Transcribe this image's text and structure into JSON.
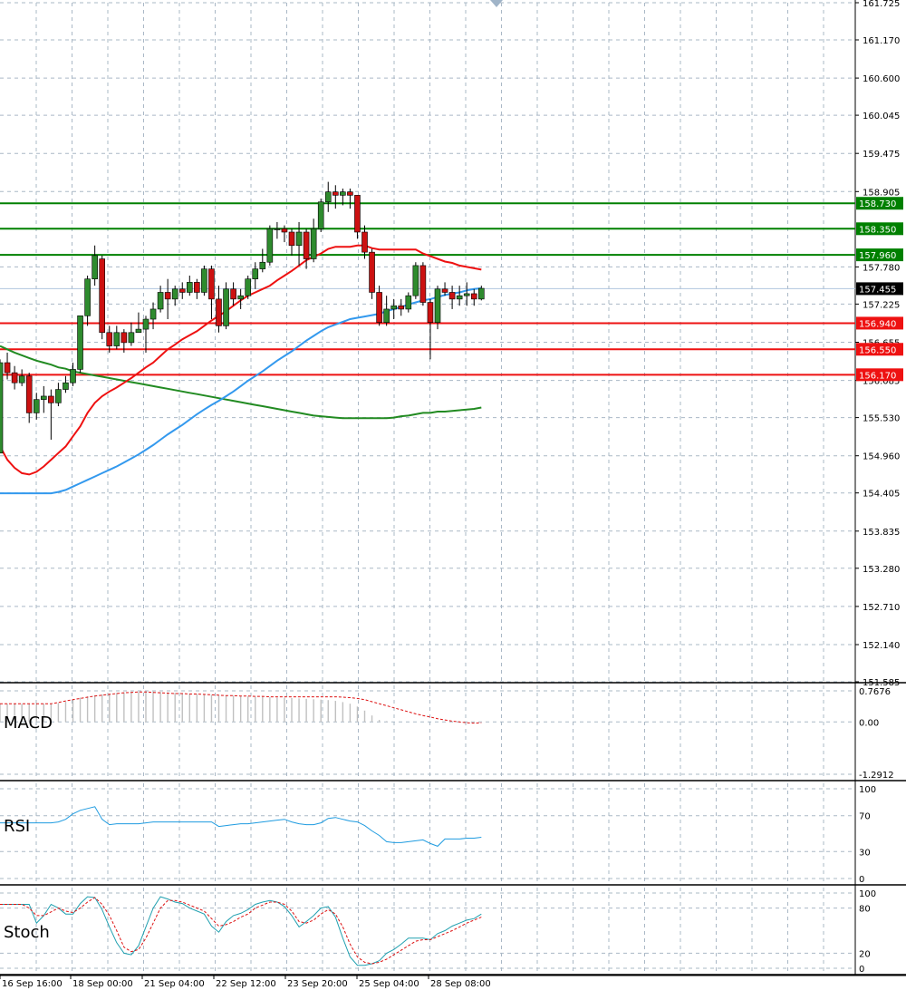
{
  "chart_data": {
    "type": "candlestick",
    "main": {
      "y_ticks": [
        161.725,
        161.17,
        160.6,
        160.045,
        159.475,
        158.905,
        157.78,
        157.225,
        156.655,
        156.085,
        155.53,
        154.96,
        154.405,
        153.835,
        153.28,
        152.71,
        152.14,
        151.585
      ],
      "ylim": [
        151.585,
        161.725
      ],
      "current_price": "157.455",
      "resistance_levels": [
        {
          "label": "158.730",
          "value": 158.73
        },
        {
          "label": "158.350",
          "value": 158.35
        },
        {
          "label": "157.960",
          "value": 157.96
        }
      ],
      "support_levels": [
        {
          "label": "156.940",
          "value": 156.94
        },
        {
          "label": "156.550",
          "value": 156.55
        },
        {
          "label": "156.170",
          "value": 156.17
        }
      ],
      "candles": [
        [
          155.0,
          156.35,
          155.0,
          156.4
        ],
        [
          156.35,
          156.2,
          156.5,
          156.1
        ],
        [
          156.2,
          156.05,
          156.3,
          155.95
        ],
        [
          156.05,
          156.15,
          156.25,
          156.0
        ],
        [
          156.15,
          155.6,
          156.2,
          155.45
        ],
        [
          155.6,
          155.8,
          155.9,
          155.5
        ],
        [
          155.8,
          155.85,
          156.0,
          155.6
        ],
        [
          155.85,
          155.75,
          155.95,
          155.2
        ],
        [
          155.75,
          155.95,
          156.05,
          155.7
        ],
        [
          155.95,
          156.05,
          156.15,
          155.9
        ],
        [
          156.05,
          156.25,
          156.35,
          156.0
        ],
        [
          156.25,
          157.05,
          157.05,
          156.2
        ],
        [
          157.05,
          157.6,
          157.65,
          156.9
        ],
        [
          157.6,
          157.95,
          158.1,
          157.5
        ],
        [
          157.9,
          156.8,
          157.95,
          156.7
        ],
        [
          156.8,
          156.6,
          156.9,
          156.5
        ],
        [
          156.6,
          156.8,
          156.9,
          156.55
        ],
        [
          156.8,
          156.65,
          156.85,
          156.5
        ],
        [
          156.65,
          156.8,
          156.95,
          156.6
        ],
        [
          156.8,
          156.85,
          157.1,
          156.8
        ],
        [
          156.85,
          157.0,
          157.05,
          156.5
        ],
        [
          157.0,
          157.15,
          157.25,
          156.85
        ],
        [
          157.15,
          157.4,
          157.5,
          157.1
        ],
        [
          157.4,
          157.3,
          157.6,
          157.0
        ],
        [
          157.3,
          157.45,
          157.5,
          157.2
        ],
        [
          157.45,
          157.4,
          157.55,
          157.3
        ],
        [
          157.4,
          157.55,
          157.65,
          157.35
        ],
        [
          157.55,
          157.4,
          157.6,
          157.3
        ],
        [
          157.4,
          157.75,
          157.8,
          157.35
        ],
        [
          157.75,
          157.3,
          157.8,
          157.0
        ],
        [
          157.3,
          156.9,
          157.5,
          156.8
        ],
        [
          156.9,
          157.45,
          157.55,
          156.85
        ],
        [
          157.45,
          157.3,
          157.55,
          157.2
        ],
        [
          157.3,
          157.35,
          157.45,
          157.15
        ],
        [
          157.35,
          157.6,
          157.65,
          157.3
        ],
        [
          157.6,
          157.75,
          157.85,
          157.45
        ],
        [
          157.75,
          157.85,
          158.05,
          157.7
        ],
        [
          157.85,
          158.35,
          158.4,
          157.8
        ],
        [
          158.35,
          158.35,
          158.45,
          158.2
        ],
        [
          158.35,
          158.3,
          158.4,
          158.15
        ],
        [
          158.3,
          158.1,
          158.35,
          157.95
        ],
        [
          158.1,
          158.3,
          158.45,
          157.8
        ],
        [
          158.3,
          157.9,
          158.35,
          157.75
        ],
        [
          157.9,
          158.35,
          158.5,
          157.85
        ],
        [
          158.35,
          158.75,
          158.8,
          158.3
        ],
        [
          158.75,
          158.9,
          159.05,
          158.6
        ],
        [
          158.9,
          158.85,
          159.0,
          158.65
        ],
        [
          158.85,
          158.9,
          158.95,
          158.7
        ],
        [
          158.9,
          158.85,
          158.95,
          158.65
        ],
        [
          158.85,
          158.3,
          158.85,
          158.2
        ],
        [
          158.3,
          158.0,
          158.4,
          157.9
        ],
        [
          158.0,
          157.4,
          158.05,
          157.3
        ],
        [
          157.4,
          156.95,
          157.5,
          156.9
        ],
        [
          156.95,
          157.15,
          157.35,
          156.9
        ],
        [
          157.15,
          157.2,
          157.3,
          157.0
        ],
        [
          157.2,
          157.15,
          157.3,
          157.05
        ],
        [
          157.15,
          157.35,
          157.4,
          157.1
        ],
        [
          157.35,
          157.8,
          157.85,
          157.3
        ],
        [
          157.8,
          157.25,
          157.85,
          157.2
        ],
        [
          157.25,
          156.95,
          157.3,
          156.4
        ],
        [
          156.95,
          157.45,
          157.5,
          156.85
        ],
        [
          157.45,
          157.4,
          157.55,
          157.35
        ],
        [
          157.4,
          157.3,
          157.5,
          157.15
        ],
        [
          157.3,
          157.35,
          157.5,
          157.2
        ],
        [
          157.35,
          157.38,
          157.55,
          157.2
        ],
        [
          157.38,
          157.3,
          157.45,
          157.2
        ],
        [
          157.3,
          157.46,
          157.5,
          157.28
        ]
      ],
      "ma_red": [
        155.1,
        154.9,
        154.78,
        154.7,
        154.68,
        154.72,
        154.8,
        154.9,
        155.0,
        155.1,
        155.25,
        155.4,
        155.6,
        155.75,
        155.85,
        155.92,
        155.98,
        156.05,
        156.12,
        156.2,
        156.28,
        156.35,
        156.45,
        156.55,
        156.62,
        156.7,
        156.76,
        156.82,
        156.9,
        156.98,
        157.05,
        157.12,
        157.2,
        157.28,
        157.35,
        157.4,
        157.45,
        157.5,
        157.58,
        157.65,
        157.72,
        157.8,
        157.88,
        157.93,
        157.98,
        158.05,
        158.08,
        158.08,
        158.08,
        158.1,
        158.1,
        158.06,
        158.04,
        158.04,
        158.04,
        158.04,
        158.04,
        158.04,
        157.98,
        157.94,
        157.9,
        157.86,
        157.84,
        157.8,
        157.78,
        157.76,
        157.74
      ],
      "ma_blue": [
        154.4,
        154.4,
        154.4,
        154.4,
        154.4,
        154.4,
        154.4,
        154.4,
        154.42,
        154.45,
        154.5,
        154.55,
        154.6,
        154.65,
        154.7,
        154.75,
        154.8,
        154.86,
        154.92,
        154.98,
        155.05,
        155.12,
        155.2,
        155.28,
        155.35,
        155.42,
        155.5,
        155.58,
        155.65,
        155.72,
        155.78,
        155.85,
        155.92,
        156.0,
        156.08,
        156.15,
        156.22,
        156.3,
        156.38,
        156.45,
        156.52,
        156.6,
        156.68,
        156.75,
        156.82,
        156.88,
        156.92,
        156.96,
        157.0,
        157.02,
        157.04,
        157.06,
        157.08,
        157.12,
        157.15,
        157.18,
        157.22,
        157.25,
        157.28,
        157.3,
        157.33,
        157.36,
        157.38,
        157.4,
        157.43,
        157.45,
        157.46
      ],
      "ma_green": [
        156.6,
        156.55,
        156.5,
        156.46,
        156.42,
        156.38,
        156.35,
        156.32,
        156.28,
        156.26,
        156.22,
        156.2,
        156.18,
        156.16,
        156.14,
        156.12,
        156.1,
        156.08,
        156.06,
        156.04,
        156.02,
        156.0,
        155.98,
        155.96,
        155.94,
        155.92,
        155.9,
        155.88,
        155.86,
        155.84,
        155.82,
        155.8,
        155.78,
        155.76,
        155.74,
        155.72,
        155.7,
        155.68,
        155.66,
        155.64,
        155.62,
        155.6,
        155.58,
        155.56,
        155.55,
        155.54,
        155.53,
        155.52,
        155.52,
        155.52,
        155.52,
        155.52,
        155.52,
        155.52,
        155.53,
        155.55,
        155.56,
        155.58,
        155.6,
        155.6,
        155.62,
        155.62,
        155.63,
        155.64,
        155.65,
        155.66,
        155.68
      ]
    },
    "macd": {
      "label": "MACD",
      "y_ticks": [
        "0.7676",
        "0.00",
        "-1.2912"
      ],
      "ylim": [
        -1.2912,
        0.7676
      ],
      "histogram": [
        0.45,
        0.45,
        0.45,
        0.45,
        0.45,
        0.45,
        0.45,
        0.45,
        0.47,
        0.5,
        0.55,
        0.6,
        0.63,
        0.66,
        0.68,
        0.7,
        0.72,
        0.73,
        0.74,
        0.74,
        0.75,
        0.75,
        0.74,
        0.73,
        0.72,
        0.71,
        0.7,
        0.69,
        0.68,
        0.67,
        0.66,
        0.65,
        0.65,
        0.64,
        0.63,
        0.62,
        0.62,
        0.61,
        0.6,
        0.6,
        0.59,
        0.58,
        0.57,
        0.56,
        0.55,
        0.54,
        0.52,
        0.49,
        0.45,
        0.38,
        0.28,
        0.16,
        0.05,
        0.02,
        0.0,
        0.0,
        0.0,
        0.0,
        0.0,
        0.0,
        0.0,
        0.0,
        0.0,
        0.0,
        0.0,
        0.0,
        0.0
      ],
      "signal": [
        0.45,
        0.45,
        0.45,
        0.45,
        0.45,
        0.45,
        0.45,
        0.45,
        0.48,
        0.52,
        0.55,
        0.58,
        0.61,
        0.64,
        0.66,
        0.68,
        0.7,
        0.72,
        0.73,
        0.74,
        0.74,
        0.73,
        0.72,
        0.71,
        0.7,
        0.7,
        0.69,
        0.69,
        0.68,
        0.67,
        0.66,
        0.65,
        0.65,
        0.64,
        0.64,
        0.63,
        0.63,
        0.62,
        0.62,
        0.62,
        0.62,
        0.62,
        0.62,
        0.62,
        0.62,
        0.62,
        0.62,
        0.61,
        0.6,
        0.58,
        0.55,
        0.5,
        0.45,
        0.4,
        0.35,
        0.3,
        0.25,
        0.2,
        0.16,
        0.12,
        0.08,
        0.05,
        0.02,
        0.0,
        -0.02,
        -0.03,
        -0.02
      ]
    },
    "rsi": {
      "label": "RSI",
      "y_ticks": [
        "100",
        "70",
        "30",
        "0"
      ],
      "ylim": [
        0,
        100
      ],
      "values": [
        62,
        62,
        62,
        62,
        62,
        62,
        62,
        62,
        63,
        66,
        72,
        76,
        78,
        80,
        66,
        60,
        61,
        61,
        61,
        61,
        62,
        63,
        63,
        63,
        63,
        63,
        63,
        63,
        63,
        63,
        58,
        59,
        60,
        61,
        61,
        62,
        63,
        64,
        65,
        66,
        63,
        61,
        60,
        60,
        62,
        67,
        68,
        66,
        64,
        63,
        59,
        53,
        48,
        41,
        40,
        40,
        41,
        42,
        43,
        39,
        36,
        44,
        44,
        44,
        45,
        45,
        46
      ]
    },
    "stoch": {
      "label": "Stoch",
      "y_ticks": [
        "100",
        "80",
        "20",
        "0"
      ],
      "ylim": [
        0,
        100
      ],
      "k": [
        85,
        85,
        85,
        85,
        85,
        60,
        70,
        85,
        80,
        72,
        72,
        86,
        95,
        94,
        78,
        55,
        34,
        20,
        18,
        30,
        55,
        80,
        95,
        92,
        88,
        86,
        80,
        76,
        72,
        56,
        48,
        62,
        70,
        73,
        78,
        85,
        88,
        90,
        88,
        82,
        70,
        55,
        62,
        70,
        80,
        82,
        68,
        40,
        15,
        4,
        4,
        6,
        10,
        20,
        25,
        32,
        40,
        40,
        40,
        38,
        46,
        50,
        56,
        60,
        64,
        66,
        72
      ],
      "d": [
        85,
        85,
        85,
        85,
        80,
        70,
        70,
        75,
        80,
        76,
        74,
        80,
        88,
        94,
        85,
        70,
        50,
        28,
        22,
        25,
        40,
        60,
        80,
        90,
        90,
        88,
        84,
        80,
        76,
        66,
        56,
        58,
        62,
        68,
        72,
        80,
        84,
        88,
        88,
        85,
        76,
        62,
        60,
        64,
        72,
        78,
        72,
        55,
        32,
        15,
        8,
        6,
        8,
        12,
        18,
        24,
        30,
        36,
        38,
        38,
        42,
        46,
        50,
        55,
        60,
        64,
        68
      ]
    },
    "x_labels": [
      "16 Sep 16:00",
      "18 Sep 00:00",
      "21 Sep 04:00",
      "22 Sep 12:00",
      "23 Sep 20:00",
      "25 Sep 04:00",
      "28 Sep 08:00"
    ]
  }
}
